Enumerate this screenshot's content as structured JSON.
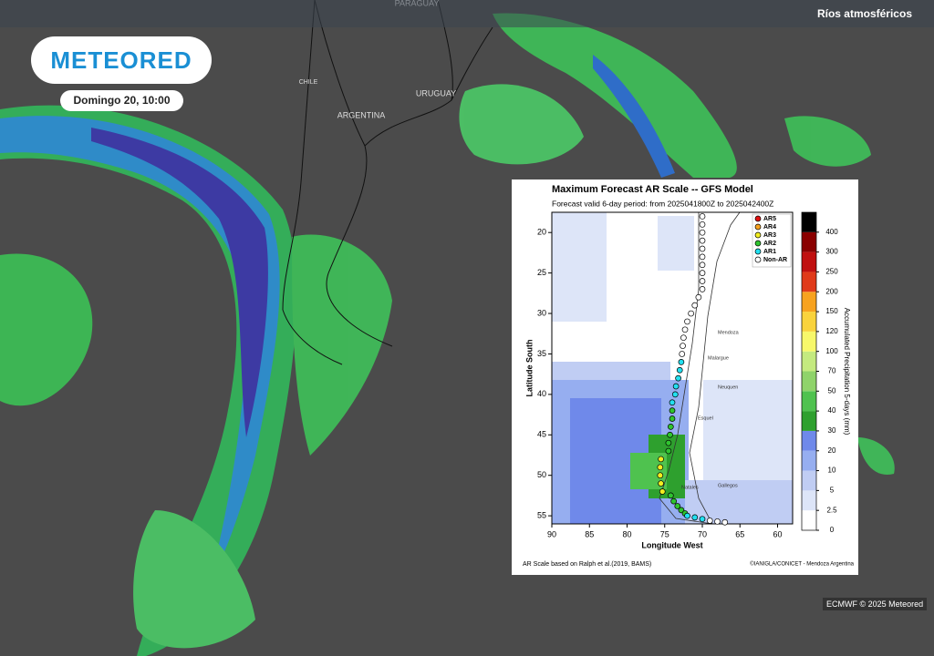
{
  "header": {
    "layer_title": "Ríos atmosféricos"
  },
  "logo": "METEORED",
  "timestamp": "Domingo 20, 10:00",
  "map_labels": [
    "PARAGUAY",
    "CHILE",
    "ARGENTINA",
    "URUGUAY"
  ],
  "credit": "ECMWF © 2025 Meteored",
  "chart_data": {
    "type": "scatter",
    "title": "Maximum Forecast AR Scale -- GFS Model",
    "subtitle": "Forecast valid 6-day period: from 2025041800Z to 2025042400Z",
    "x_label": "Longitude West",
    "y_label": "Latitude South",
    "xlim": [
      90,
      58
    ],
    "xticks": [
      90,
      85,
      80,
      75,
      70,
      65,
      60
    ],
    "ylim": [
      17.5,
      56
    ],
    "yticks": [
      20,
      25,
      30,
      35,
      40,
      45,
      50,
      55
    ],
    "legend_position": "upper right",
    "series": [
      {
        "name": "AR5",
        "color": "#e01010",
        "x": [],
        "y": []
      },
      {
        "name": "AR4",
        "color": "#f7a21f",
        "x": [],
        "y": []
      },
      {
        "name": "AR3",
        "color": "#f2ee20",
        "x": [
          75.5,
          75.6,
          75.6,
          75.5,
          75.3
        ],
        "y": [
          48,
          49,
          50,
          51,
          52
        ]
      },
      {
        "name": "AR2",
        "color": "#2fc42f",
        "x": [
          74,
          74,
          74.2,
          74.3,
          74.5,
          74.5,
          74.2,
          73.8,
          73.3,
          72.8,
          72.3
        ],
        "y": [
          42,
          43,
          44,
          45,
          46,
          47,
          52.5,
          53.2,
          53.8,
          54.3,
          54.7
        ]
      },
      {
        "name": "AR1",
        "color": "#22e0f0",
        "x": [
          72.8,
          73,
          73.2,
          73.5,
          73.6,
          74,
          72,
          71,
          70
        ],
        "y": [
          36,
          37,
          38,
          39,
          40,
          41,
          55,
          55.2,
          55.4
        ]
      },
      {
        "name": "Non-AR",
        "color": "#ffffff",
        "x": [
          70,
          70,
          70,
          70,
          70,
          70,
          70,
          70,
          70,
          70,
          70.5,
          71,
          71.5,
          72,
          72.3,
          72.5,
          72.6,
          72.7,
          69,
          68,
          67
        ],
        "y": [
          18,
          19,
          20,
          21,
          22,
          23,
          24,
          25,
          26,
          27,
          28,
          29,
          30,
          31,
          32,
          33,
          34,
          35,
          55.6,
          55.7,
          55.8
        ]
      }
    ],
    "colorbar": {
      "label": "Accumulated Precipitation 5-days (mm)",
      "ticks": [
        0,
        2.5,
        5,
        10,
        20,
        30,
        40,
        50,
        70,
        100,
        120,
        150,
        200,
        250,
        300,
        400
      ],
      "colors": [
        "#ffffff",
        "#dde5f8",
        "#c0cdf3",
        "#96aef0",
        "#6f89ea",
        "#2ea02e",
        "#4fc24f",
        "#8fd36a",
        "#c4ea7f",
        "#f7f86a",
        "#f9d33c",
        "#f7a21f",
        "#e03a1a",
        "#c01010",
        "#8a0000",
        "#000000"
      ]
    },
    "place_labels": [
      "Mendoza",
      "Malargue",
      "Neuquen",
      "Esquel",
      "Gallegos",
      "Natales"
    ],
    "source_note": "AR Scale based on Ralph et al.(2019, BAMS)",
    "credit_note": "©IANIGLA/CONICET - Mendoza Argentina"
  }
}
